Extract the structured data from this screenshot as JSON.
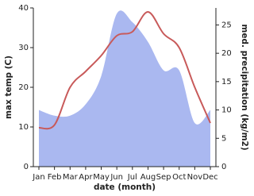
{
  "chart_data": {
    "type": "line-area",
    "x_label": "date (month)",
    "y_label": "max temp (C)",
    "y2_label": "med. precipitation (kg/m2)",
    "categories": [
      "Jan",
      "Feb",
      "Mar",
      "Apr",
      "May",
      "Jun",
      "Jul",
      "Aug",
      "Sep",
      "Oct",
      "Nov",
      "Dec"
    ],
    "series": [
      {
        "name": "med. precipitation",
        "kind": "area",
        "axis": "y2",
        "color": "#aab8f0",
        "values": [
          10,
          9,
          9,
          11,
          16,
          27,
          25.5,
          22,
          17,
          17,
          7.7,
          10
        ]
      },
      {
        "name": "max temp",
        "kind": "line",
        "axis": "y",
        "color": "#c85a5a",
        "values": [
          9.8,
          10.5,
          20,
          24,
          28,
          33,
          34,
          39,
          33.5,
          30,
          20,
          11
        ]
      }
    ],
    "ylim": [
      0,
      40
    ],
    "yticks": [
      0,
      10,
      20,
      30,
      40
    ],
    "y2lim": [
      0,
      28
    ],
    "y2ticks": [
      0,
      5,
      10,
      15,
      20,
      25
    ],
    "grid": false
  }
}
